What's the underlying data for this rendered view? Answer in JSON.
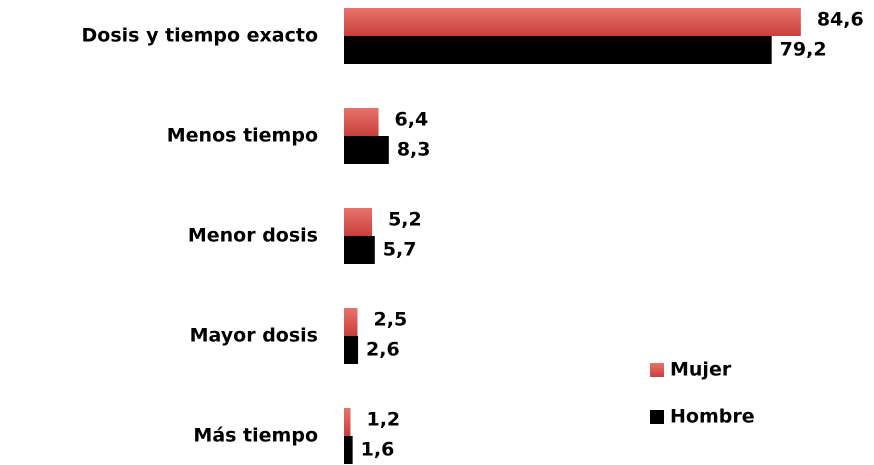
{
  "chart_data": {
    "type": "hbar",
    "categories": [
      "Dosis y tiempo exacto",
      "Menos tiempo",
      "Menor dosis",
      "Mayor dosis",
      "Más tiempo"
    ],
    "series": [
      {
        "name": "Mujer",
        "color": "#d9534f",
        "values": [
          84.6,
          6.4,
          5.2,
          2.5,
          1.2
        ],
        "value_labels": [
          "84,6",
          "6,4",
          "5,2",
          "2,5",
          "1,2"
        ]
      },
      {
        "name": "Hombre",
        "color": "#000000",
        "values": [
          79.2,
          8.3,
          5.7,
          2.6,
          1.6
        ],
        "value_labels": [
          "79,2",
          "8,3",
          "5,7",
          "2,6",
          "1,6"
        ]
      }
    ],
    "xlim": [
      0,
      90
    ],
    "legend": "lower right"
  }
}
